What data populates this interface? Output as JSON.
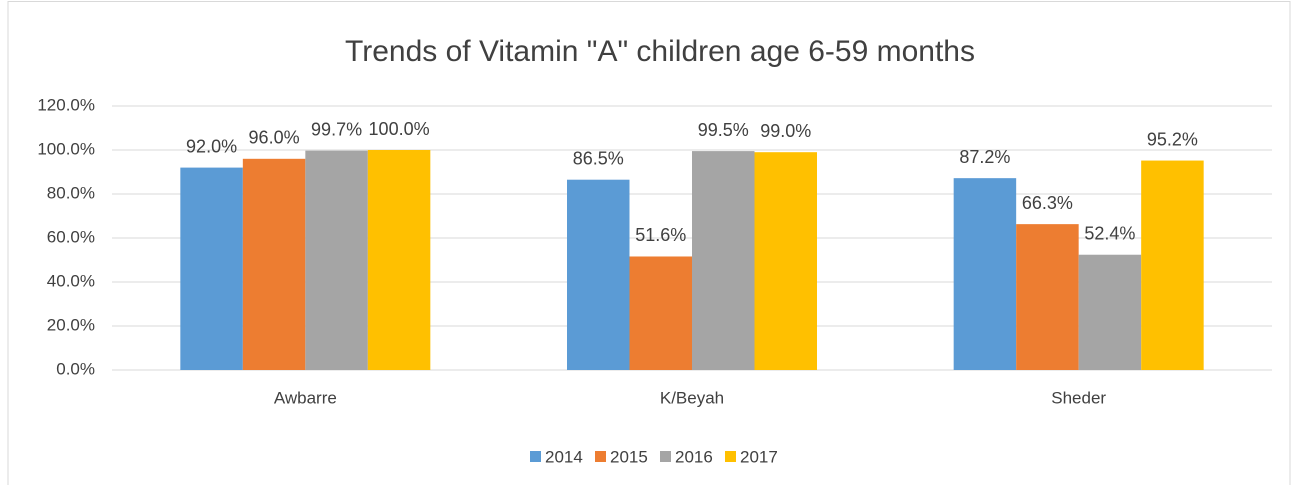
{
  "chart_data": {
    "type": "bar",
    "title": "Trends of Vitamin \"A\" children age 6-59 months",
    "categories": [
      "Awbarre",
      "K/Beyah",
      "Sheder"
    ],
    "series": [
      {
        "name": "2014",
        "color": "#5b9bd5",
        "values": [
          92.0,
          86.5,
          87.2
        ],
        "value_labels": [
          "92.0%",
          "86.5%",
          "87.2%"
        ]
      },
      {
        "name": "2015",
        "color": "#ed7d31",
        "values": [
          96.0,
          51.6,
          66.3
        ],
        "value_labels": [
          "96.0%",
          "51.6%",
          "66.3%"
        ]
      },
      {
        "name": "2016",
        "color": "#a5a5a5",
        "values": [
          99.7,
          99.5,
          52.4
        ],
        "value_labels": [
          "99.7%",
          "99.5%",
          "52.4%"
        ]
      },
      {
        "name": "2017",
        "color": "#ffc000",
        "values": [
          100.0,
          99.0,
          95.2
        ],
        "value_labels": [
          "100.0%",
          "99.0%",
          "95.2%"
        ]
      }
    ],
    "ylim": [
      0,
      120
    ],
    "yticks": [
      {
        "value": 0,
        "label": "0.0%"
      },
      {
        "value": 20,
        "label": "20.0%"
      },
      {
        "value": 40,
        "label": "40.0%"
      },
      {
        "value": 60,
        "label": "60.0%"
      },
      {
        "value": 80,
        "label": "80.0%"
      },
      {
        "value": 100,
        "label": "100.0%"
      },
      {
        "value": 120,
        "label": "120.0%"
      }
    ],
    "grid": true,
    "legend": "bottom"
  }
}
